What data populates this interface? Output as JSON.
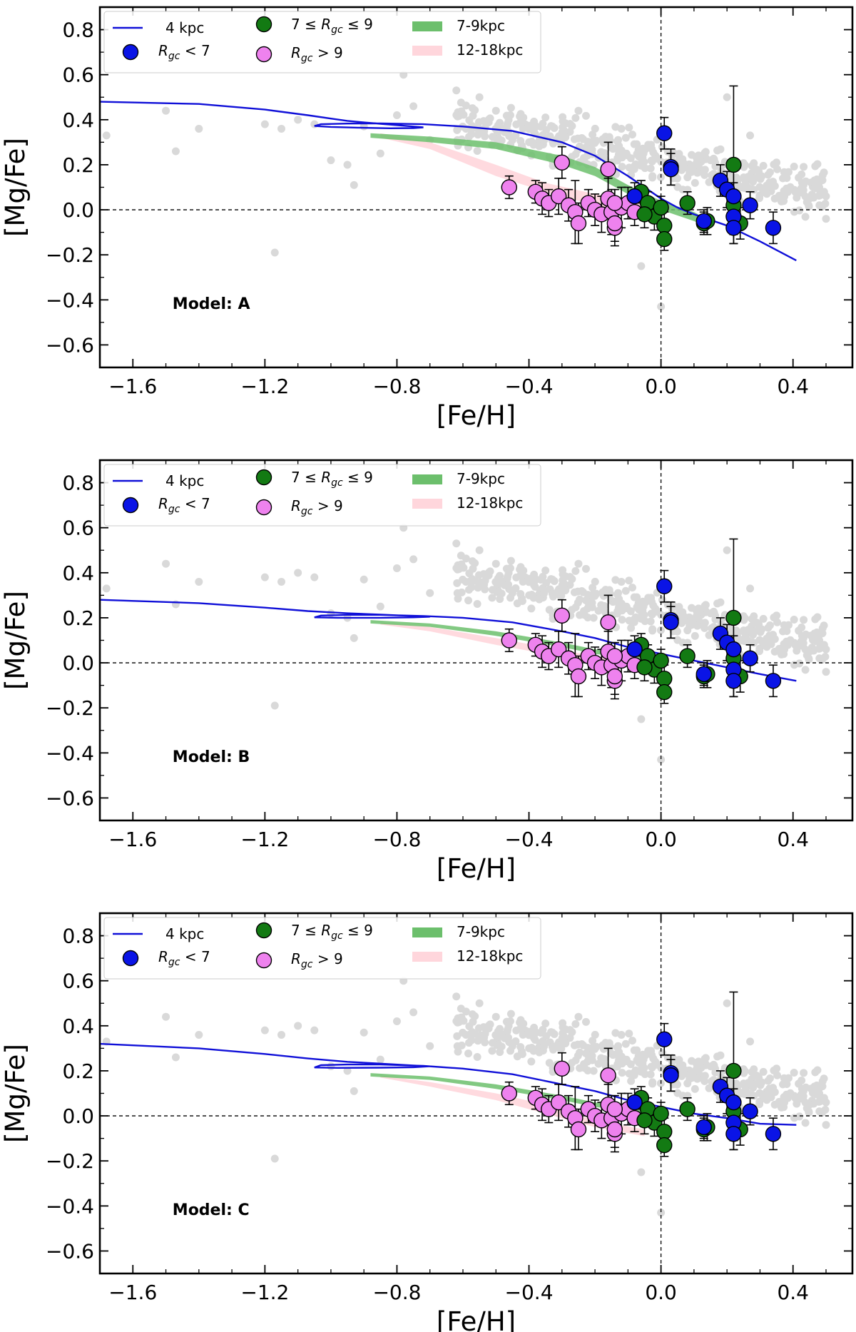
{
  "figure": {
    "shared_x_label": "[Fe/H]",
    "shared_y_label": "[Mg/Fe]"
  },
  "colors": {
    "model_line": "#1010d8",
    "inner": "#0a14e6",
    "solar": "#137a13",
    "outer": "#ee82ee",
    "band_7_9": "#6cbf6c",
    "band_12_18": "#ffd6dc",
    "field": "#d9d9d9",
    "axis": "#000000"
  },
  "legend": {
    "model": "4 kpc",
    "inner": "R_gc < 7",
    "solar": "7 ≤ R_gc ≤ 9",
    "outer": "R_gc > 9",
    "band_7_9": "7-9kpc",
    "band_12_18": "12-18kpc"
  },
  "chart_data": [
    {
      "type": "scatter",
      "title": "Model: A",
      "xlabel": "[Fe/H]",
      "ylabel": "[Mg/Fe]",
      "xlim": [
        -1.7,
        0.58
      ],
      "ylim": [
        -0.7,
        0.9
      ],
      "xticks": [
        -1.6,
        -1.2,
        -0.8,
        -0.4,
        0.0,
        0.4
      ],
      "xticklabels": [
        "−1.6",
        "−1.2",
        "−0.8",
        "−0.4",
        "0.0",
        "0.4"
      ],
      "yticks": [
        -0.6,
        -0.4,
        -0.2,
        0.0,
        0.2,
        0.4,
        0.6,
        0.8
      ],
      "yticklabels": [
        "−0.6",
        "−0.4",
        "−0.2",
        "0.0",
        "0.2",
        "0.4",
        "0.6",
        "0.8"
      ],
      "reference_lines": {
        "x": 0.0,
        "y": 0.0
      },
      "model_curve": {
        "name": "4 kpc",
        "points": [
          [
            -1.7,
            0.48
          ],
          [
            -1.4,
            0.47
          ],
          [
            -1.2,
            0.445
          ],
          [
            -1.07,
            0.42
          ],
          [
            -1.0,
            0.405
          ],
          [
            -0.95,
            0.395
          ],
          [
            -0.9,
            0.388
          ],
          [
            -0.85,
            0.382
          ],
          [
            -0.8,
            0.376
          ],
          [
            -0.75,
            0.37
          ],
          [
            -0.72,
            0.366
          ],
          [
            -0.75,
            0.363
          ],
          [
            -0.82,
            0.362
          ],
          [
            -0.92,
            0.365
          ],
          [
            -1.0,
            0.368
          ],
          [
            -1.05,
            0.372
          ],
          [
            -1.03,
            0.38
          ],
          [
            -0.95,
            0.383
          ],
          [
            -0.85,
            0.384
          ],
          [
            -0.72,
            0.38
          ],
          [
            -0.6,
            0.37
          ],
          [
            -0.45,
            0.35
          ],
          [
            -0.3,
            0.3
          ],
          [
            -0.2,
            0.24
          ],
          [
            -0.1,
            0.15
          ],
          [
            -0.05,
            0.1
          ],
          [
            0.0,
            0.05
          ],
          [
            0.05,
            0.01
          ],
          [
            0.1,
            -0.02
          ],
          [
            0.2,
            -0.07
          ],
          [
            0.3,
            -0.14
          ],
          [
            0.41,
            -0.225
          ]
        ]
      },
      "band_7_9": [
        [
          -0.88,
          0.34,
          0.32
        ],
        [
          -0.7,
          0.325,
          0.3
        ],
        [
          -0.5,
          0.3,
          0.27
        ],
        [
          -0.3,
          0.24,
          0.2
        ],
        [
          -0.2,
          0.19,
          0.15
        ],
        [
          -0.1,
          0.11,
          0.07
        ],
        [
          0.0,
          0.04,
          0.0
        ],
        [
          0.1,
          -0.01,
          -0.05
        ],
        [
          0.15,
          -0.05,
          -0.08
        ]
      ],
      "band_12_18": [
        [
          -0.85,
          0.34,
          0.32
        ],
        [
          -0.7,
          0.3,
          0.27
        ],
        [
          -0.5,
          0.2,
          0.15
        ],
        [
          -0.35,
          0.12,
          0.08
        ],
        [
          -0.2,
          0.07,
          0.02
        ],
        [
          -0.05,
          0.03,
          -0.02
        ]
      ],
      "model_text": "Model: A",
      "model_label_position": [
        -1.48,
        -0.44
      ]
    },
    {
      "type": "scatter",
      "title": "Model: B",
      "xlabel": "[Fe/H]",
      "ylabel": "[Mg/Fe]",
      "xlim": [
        -1.7,
        0.58
      ],
      "ylim": [
        -0.7,
        0.9
      ],
      "xticks": [
        -1.6,
        -1.2,
        -0.8,
        -0.4,
        0.0,
        0.4
      ],
      "xticklabels": [
        "−1.6",
        "−1.2",
        "−0.8",
        "−0.4",
        "0.0",
        "0.4"
      ],
      "yticks": [
        -0.6,
        -0.4,
        -0.2,
        0.0,
        0.2,
        0.4,
        0.6,
        0.8
      ],
      "yticklabels": [
        "−0.6",
        "−0.4",
        "−0.2",
        "0.0",
        "0.2",
        "0.4",
        "0.6",
        "0.8"
      ],
      "reference_lines": {
        "x": 0.0,
        "y": 0.0
      },
      "model_curve": {
        "name": "4 kpc",
        "points": [
          [
            -1.7,
            0.28
          ],
          [
            -1.4,
            0.265
          ],
          [
            -1.2,
            0.245
          ],
          [
            -1.07,
            0.23
          ],
          [
            -0.95,
            0.22
          ],
          [
            -0.85,
            0.214
          ],
          [
            -0.75,
            0.208
          ],
          [
            -0.7,
            0.205
          ],
          [
            -0.75,
            0.202
          ],
          [
            -0.85,
            0.2
          ],
          [
            -0.98,
            0.2
          ],
          [
            -1.05,
            0.202
          ],
          [
            -1.03,
            0.21
          ],
          [
            -0.95,
            0.213
          ],
          [
            -0.85,
            0.213
          ],
          [
            -0.72,
            0.208
          ],
          [
            -0.6,
            0.2
          ],
          [
            -0.45,
            0.18
          ],
          [
            -0.3,
            0.14
          ],
          [
            -0.2,
            0.11
          ],
          [
            -0.1,
            0.07
          ],
          [
            0.0,
            0.04
          ],
          [
            0.1,
            0.01
          ],
          [
            0.2,
            -0.02
          ],
          [
            0.3,
            -0.05
          ],
          [
            0.41,
            -0.08
          ]
        ]
      },
      "band_7_9": [
        [
          -0.88,
          0.19,
          0.175
        ],
        [
          -0.7,
          0.175,
          0.16
        ],
        [
          -0.5,
          0.14,
          0.12
        ],
        [
          -0.3,
          0.09,
          0.07
        ],
        [
          -0.2,
          0.06,
          0.04
        ],
        [
          -0.1,
          0.04,
          0.02
        ],
        [
          0.0,
          0.02,
          0.0
        ]
      ],
      "band_12_18": [
        [
          -0.85,
          0.18,
          0.17
        ],
        [
          -0.7,
          0.16,
          0.14
        ],
        [
          -0.5,
          0.11,
          0.08
        ],
        [
          -0.35,
          0.07,
          0.04
        ],
        [
          -0.2,
          0.03,
          0.0
        ],
        [
          -0.05,
          0.01,
          -0.02
        ]
      ],
      "model_text": "Model: B",
      "model_label_position": [
        -1.48,
        -0.44
      ]
    },
    {
      "type": "scatter",
      "title": "Model: C",
      "xlabel": "[Fe/H]",
      "ylabel": "[Mg/Fe]",
      "xlim": [
        -1.7,
        0.58
      ],
      "ylim": [
        -0.7,
        0.9
      ],
      "xticks": [
        -1.6,
        -1.2,
        -0.8,
        -0.4,
        0.0,
        0.4
      ],
      "xticklabels": [
        "−1.6",
        "−1.2",
        "−0.8",
        "−0.4",
        "0.0",
        "0.4"
      ],
      "yticks": [
        -0.6,
        -0.4,
        -0.2,
        0.0,
        0.2,
        0.4,
        0.6,
        0.8
      ],
      "yticklabels": [
        "−0.6",
        "−0.4",
        "−0.2",
        "0.0",
        "0.2",
        "0.4",
        "0.6",
        "0.8"
      ],
      "reference_lines": {
        "x": 0.0,
        "y": 0.0
      },
      "model_curve": {
        "name": "4 kpc",
        "points": [
          [
            -1.7,
            0.32
          ],
          [
            -1.4,
            0.3
          ],
          [
            -1.2,
            0.275
          ],
          [
            -1.07,
            0.255
          ],
          [
            -0.95,
            0.24
          ],
          [
            -0.85,
            0.232
          ],
          [
            -0.75,
            0.224
          ],
          [
            -0.7,
            0.22
          ],
          [
            -0.75,
            0.216
          ],
          [
            -0.85,
            0.214
          ],
          [
            -0.98,
            0.213
          ],
          [
            -1.05,
            0.215
          ],
          [
            -1.03,
            0.225
          ],
          [
            -0.95,
            0.228
          ],
          [
            -0.85,
            0.228
          ],
          [
            -0.72,
            0.222
          ],
          [
            -0.6,
            0.21
          ],
          [
            -0.45,
            0.185
          ],
          [
            -0.3,
            0.14
          ],
          [
            -0.2,
            0.11
          ],
          [
            -0.1,
            0.07
          ],
          [
            0.0,
            0.04
          ],
          [
            0.1,
            0.01
          ],
          [
            0.2,
            -0.01
          ],
          [
            0.3,
            -0.035
          ],
          [
            0.41,
            -0.04
          ]
        ]
      },
      "band_7_9": [
        [
          -0.88,
          0.19,
          0.175
        ],
        [
          -0.7,
          0.175,
          0.16
        ],
        [
          -0.5,
          0.14,
          0.12
        ],
        [
          -0.3,
          0.09,
          0.07
        ],
        [
          -0.2,
          0.06,
          0.04
        ],
        [
          -0.1,
          0.04,
          0.02
        ],
        [
          0.0,
          0.02,
          0.0
        ]
      ],
      "band_12_18": [
        [
          -0.85,
          0.18,
          0.17
        ],
        [
          -0.7,
          0.15,
          0.13
        ],
        [
          -0.5,
          0.1,
          0.07
        ],
        [
          -0.35,
          0.05,
          0.01
        ],
        [
          -0.2,
          -0.02,
          -0.05
        ],
        [
          -0.05,
          -0.06,
          -0.09
        ]
      ],
      "model_text": "Model: C",
      "model_label_position": [
        -1.48,
        -0.44
      ]
    }
  ],
  "observations": {
    "inner": [
      [
        0.01,
        0.34,
        0.07
      ],
      [
        0.03,
        0.19,
        0.08
      ],
      [
        0.03,
        0.18,
        0.07
      ],
      [
        0.18,
        0.13,
        0.07
      ],
      [
        0.2,
        0.09,
        0.08
      ],
      [
        0.22,
        0.06,
        0.06
      ],
      [
        0.22,
        -0.03,
        0.08
      ],
      [
        0.22,
        -0.08,
        0.07
      ],
      [
        0.27,
        0.02,
        0.06
      ],
      [
        0.34,
        -0.08,
        0.07
      ],
      [
        -0.08,
        0.06,
        0.06
      ],
      [
        0.13,
        -0.05,
        0.05
      ]
    ],
    "solar": [
      [
        0.22,
        0.2,
        0.35
      ],
      [
        -0.06,
        0.08,
        0.05
      ],
      [
        -0.04,
        0.03,
        0.05
      ],
      [
        -0.02,
        -0.03,
        0.06
      ],
      [
        0.0,
        0.01,
        0.05
      ],
      [
        0.01,
        -0.07,
        0.06
      ],
      [
        0.01,
        -0.13,
        0.05
      ],
      [
        0.08,
        0.03,
        0.05
      ],
      [
        0.13,
        -0.06,
        0.05
      ],
      [
        0.14,
        -0.05,
        0.06
      ],
      [
        0.22,
        0.02,
        0.06
      ],
      [
        0.24,
        -0.06,
        0.07
      ],
      [
        -0.05,
        -0.02,
        0.06
      ]
    ],
    "outer": [
      [
        -0.3,
        0.21,
        0.07
      ],
      [
        -0.16,
        0.18,
        0.12
      ],
      [
        -0.46,
        0.1,
        0.05
      ],
      [
        -0.38,
        0.08,
        0.05
      ],
      [
        -0.36,
        0.05,
        0.07
      ],
      [
        -0.34,
        0.03,
        0.06
      ],
      [
        -0.31,
        0.06,
        0.08
      ],
      [
        -0.28,
        0.02,
        0.07
      ],
      [
        -0.26,
        -0.01,
        0.14
      ],
      [
        -0.25,
        -0.06,
        0.09
      ],
      [
        -0.22,
        0.03,
        0.06
      ],
      [
        -0.2,
        0.0,
        0.07
      ],
      [
        -0.18,
        -0.02,
        0.08
      ],
      [
        -0.16,
        0.05,
        0.09
      ],
      [
        -0.15,
        -0.01,
        0.1
      ],
      [
        -0.14,
        -0.08,
        0.08
      ],
      [
        -0.14,
        -0.06,
        0.08
      ],
      [
        -0.12,
        0.01,
        0.09
      ],
      [
        -0.1,
        0.03,
        0.07
      ],
      [
        -0.08,
        -0.01,
        0.06
      ],
      [
        -0.14,
        0.03,
        0.06
      ]
    ]
  }
}
